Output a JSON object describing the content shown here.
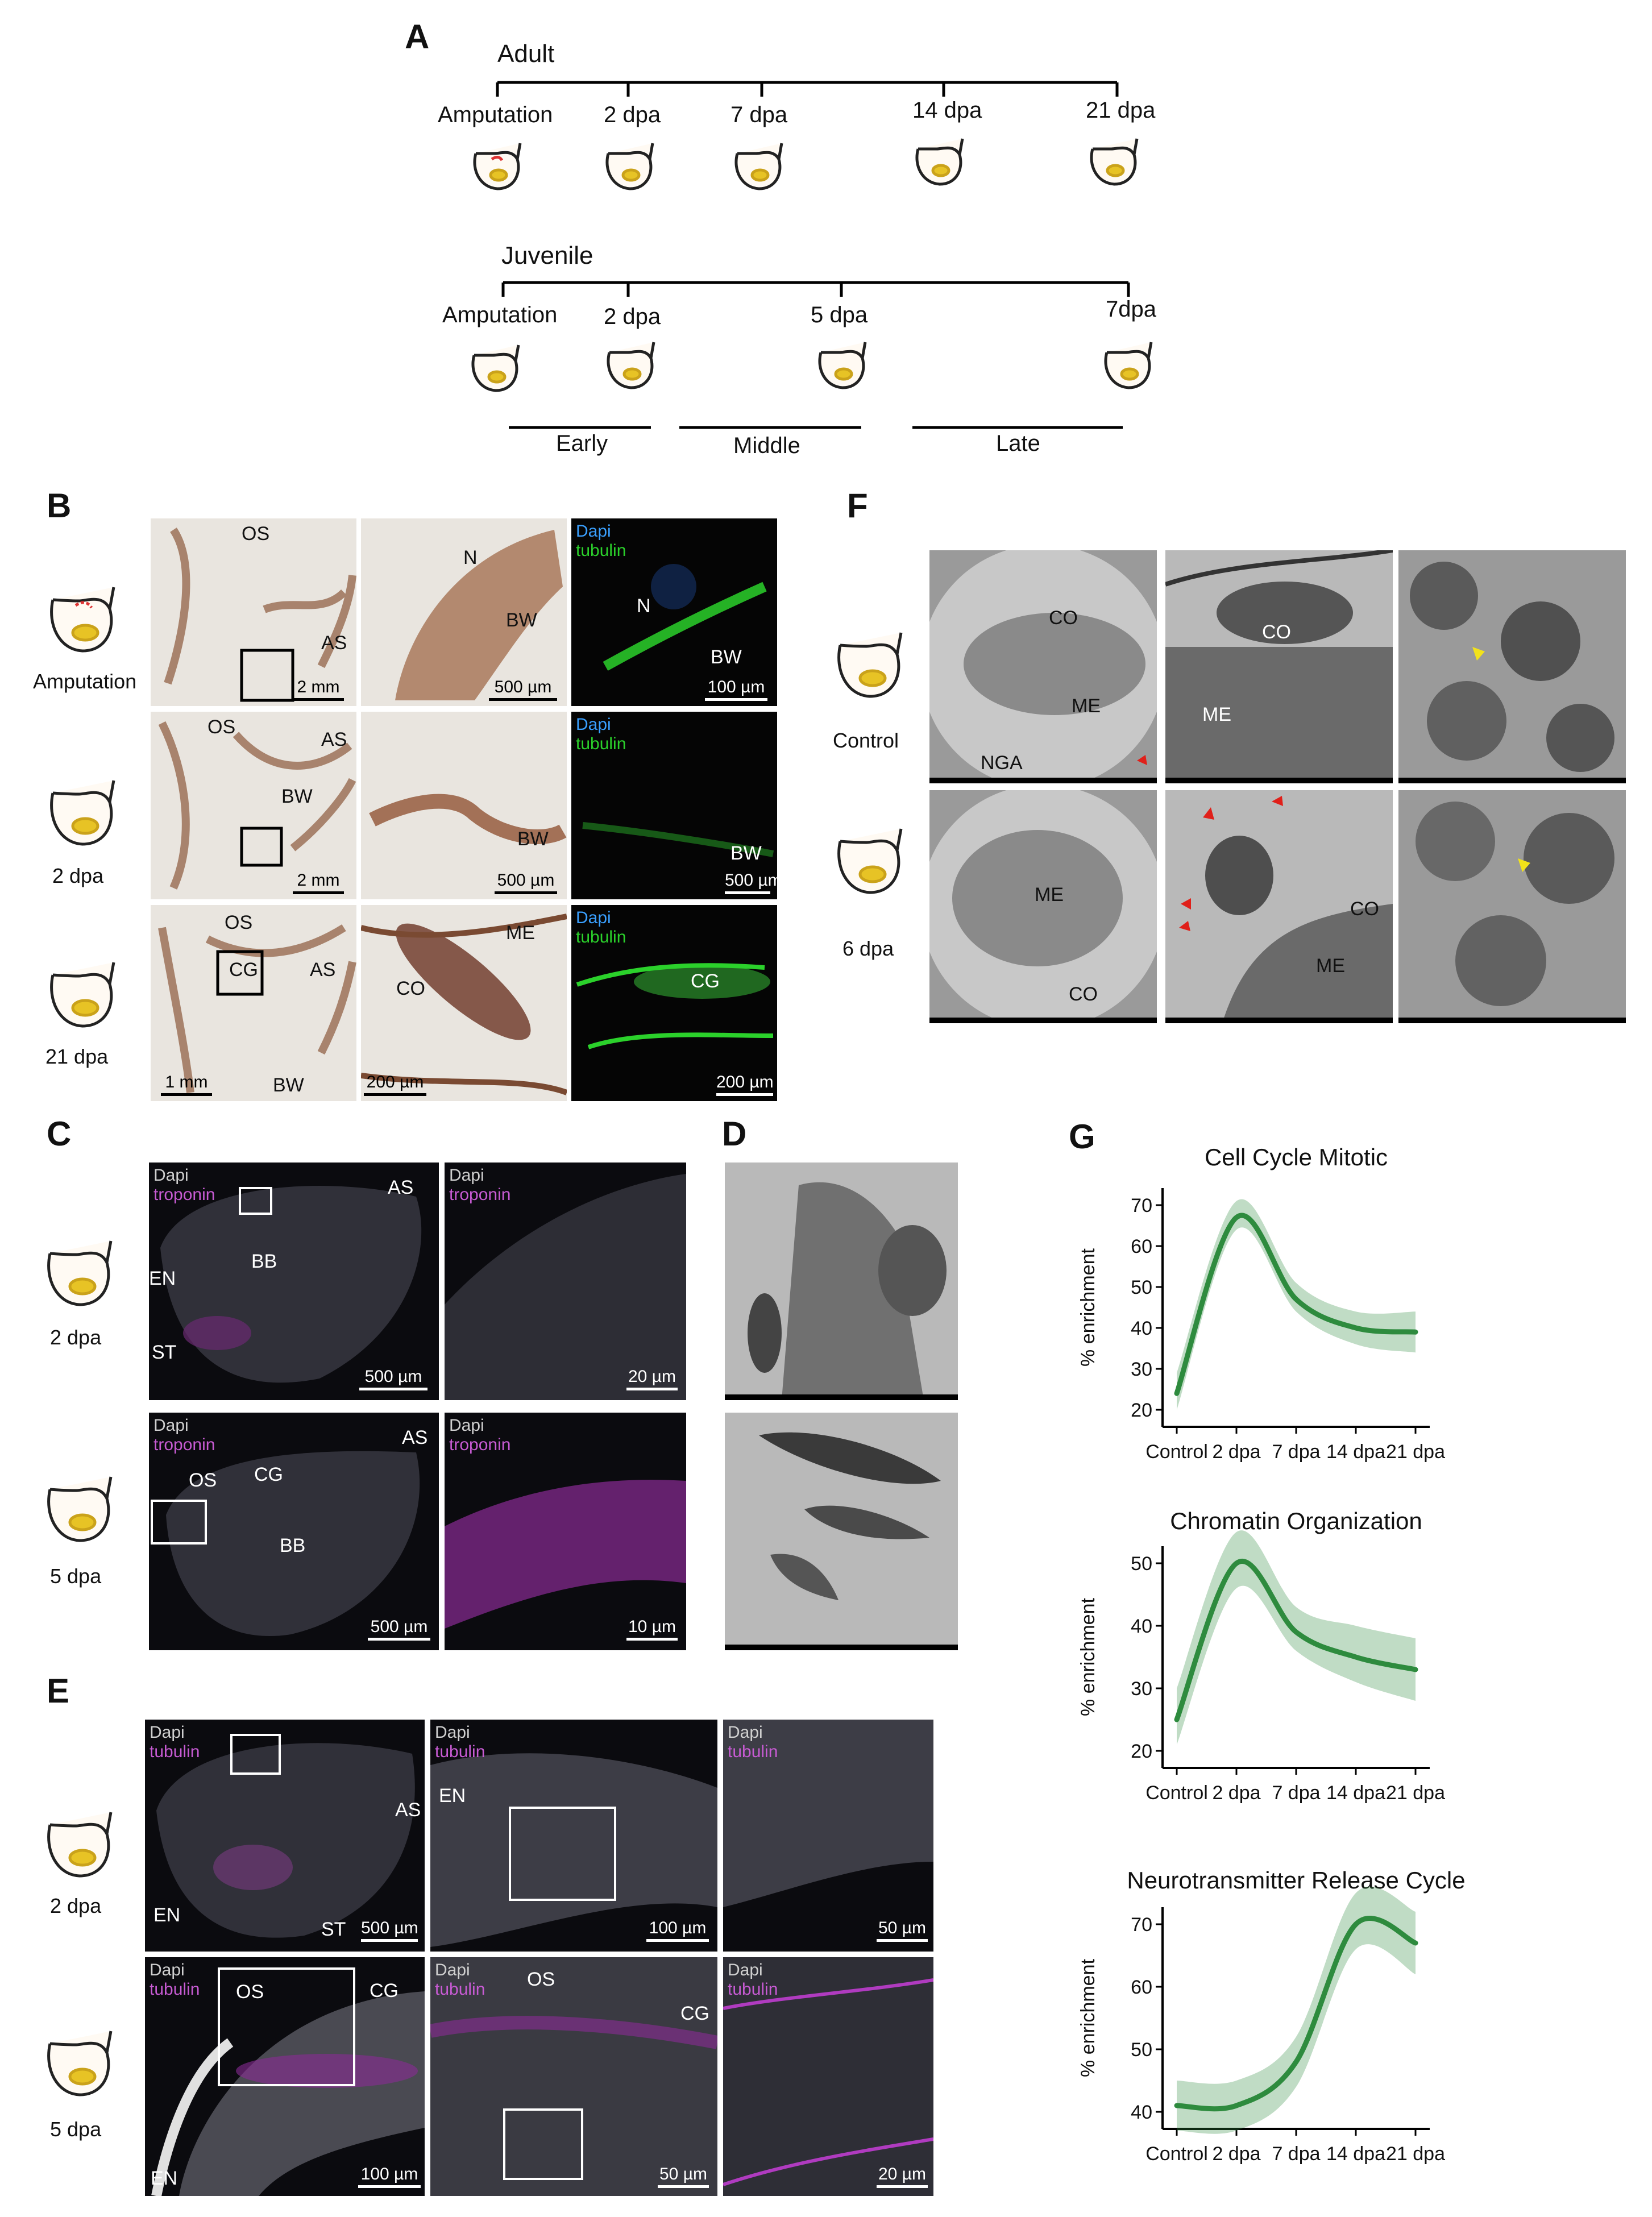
{
  "panel_letters": {
    "a": "A",
    "b": "B",
    "c": "C",
    "d": "D",
    "e": "E",
    "f": "F",
    "g": "G"
  },
  "timeline": {
    "adult": {
      "title": "Adult",
      "points": [
        "Amputation",
        "2 dpa",
        "7 dpa",
        "14 dpa",
        "21 dpa"
      ]
    },
    "juvenile": {
      "title": "Juvenile",
      "points": [
        "Amputation",
        "2 dpa",
        "5 dpa",
        "7dpa"
      ]
    },
    "phases": [
      "Early",
      "Middle",
      "Late"
    ]
  },
  "panel_b": {
    "rows": [
      "Amputation",
      "2 dpa",
      "21 dpa"
    ],
    "stain": {
      "dapi": "Dapi",
      "tubulin": "tubulin"
    },
    "labels": {
      "os": "OS",
      "as": "AS",
      "n": "N",
      "bw": "BW",
      "cg": "CG",
      "me": "ME",
      "co": "CO"
    },
    "scales": {
      "r1": [
        "2 mm",
        "500 µm",
        "100 µm"
      ],
      "r2": [
        "2 mm",
        "500 µm",
        "500 µm"
      ],
      "r3": [
        "1 mm",
        "200 µm",
        "200 µm"
      ]
    }
  },
  "panel_c": {
    "rows": [
      "2 dpa",
      "5 dpa"
    ],
    "stain": {
      "dapi": "Dapi",
      "troponin": "troponin"
    },
    "labels": {
      "as": "AS",
      "bb": "BB",
      "en": "EN",
      "st": "ST",
      "os": "OS",
      "cg": "CG"
    },
    "scales": {
      "r1": [
        "500 µm",
        "20 µm"
      ],
      "r2": [
        "500 µm",
        "10 µm"
      ]
    }
  },
  "panel_e": {
    "rows": [
      "2 dpa",
      "5 dpa"
    ],
    "stain": {
      "dapi": "Dapi",
      "tubulin": "tubulin"
    },
    "labels": {
      "as": "AS",
      "en": "EN",
      "st": "ST",
      "os": "OS",
      "cg": "CG"
    },
    "scales": {
      "r1": [
        "500 µm",
        "100 µm",
        "50 µm"
      ],
      "r2": [
        "100 µm",
        "50 µm",
        "20 µm"
      ]
    }
  },
  "panel_f": {
    "rows": [
      "Control",
      "6 dpa"
    ],
    "labels": {
      "co": "CO",
      "me": "ME",
      "nga": "NGA"
    },
    "colors": {
      "red_arrow": "#e0201a",
      "yellow_arrow": "#f2e21a"
    }
  },
  "chart_data": [
    {
      "type": "line",
      "title": "Cell Cycle Mitotic",
      "ylabel": "% enrichment",
      "categories": [
        "Control",
        "2 dpa",
        "7 dpa",
        "14 dpa",
        "21 dpa"
      ],
      "values": [
        24,
        67,
        47,
        40,
        39
      ],
      "ci_low": [
        20,
        64,
        44,
        36,
        34
      ],
      "ci_high": [
        29,
        71,
        51,
        44,
        44
      ],
      "ylim": [
        20,
        70
      ],
      "yticks": [
        20,
        30,
        40,
        50,
        60,
        70
      ],
      "color": "#2e8b3e"
    },
    {
      "type": "line",
      "title": "Chromatin Organization",
      "ylabel": "% enrichment",
      "categories": [
        "Control",
        "2 dpa",
        "7 dpa",
        "14 dpa",
        "21 dpa"
      ],
      "values": [
        25,
        50,
        39,
        35,
        33
      ],
      "ci_low": [
        21,
        46,
        36,
        31,
        28
      ],
      "ci_high": [
        30,
        55,
        43,
        40,
        38
      ],
      "ylim": [
        20,
        50
      ],
      "yticks": [
        20,
        30,
        40,
        50
      ],
      "color": "#2e8b3e"
    },
    {
      "type": "line",
      "title": "Neurotransmitter Release Cycle",
      "ylabel": "% enrichment",
      "categories": [
        "Control",
        "2 dpa",
        "7 dpa",
        "14 dpa",
        "21 dpa"
      ],
      "values": [
        41,
        41,
        48,
        70,
        67
      ],
      "ci_low": [
        37,
        37,
        44,
        66,
        62
      ],
      "ci_high": [
        45,
        45,
        52,
        75,
        72
      ],
      "ylim": [
        40,
        70
      ],
      "yticks": [
        40,
        50,
        60,
        70
      ],
      "color": "#2e8b3e"
    }
  ]
}
